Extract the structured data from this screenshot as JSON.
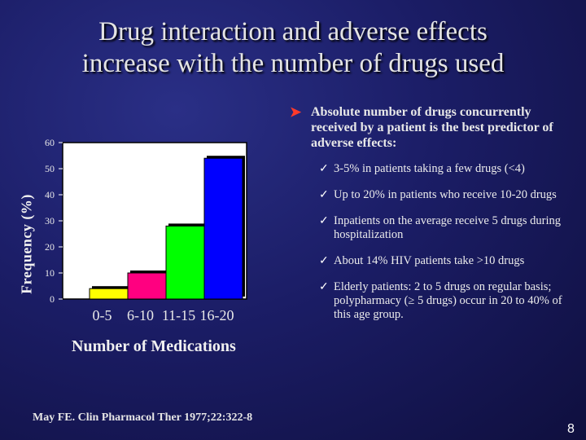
{
  "slide": {
    "title_line1": "Drug interaction and adverse effects",
    "title_line2": "increase with the number of drugs used",
    "main_bullet": "Absolute number of drugs concurrently received by a patient is the best predictor of adverse effects:",
    "sub_bullets": [
      "3-5% in patients taking a few drugs (<4)",
      "Up to 20% in patients who receive 10-20 drugs",
      "Inpatients on the average receive 5 drugs during hospitalization",
      "About 14% HIV patients take >10 drugs",
      "Elderly patients: 2 to 5 drugs on regular basis; polypharmacy (≥ 5 drugs) occur in 20 to 40% of this age group."
    ],
    "citation": "May FE.  Clin Pharmacol Ther 1977;22:322-8",
    "page_number": "8",
    "bullet_arrow_color": "#ff3a2a"
  },
  "chart_data": {
    "type": "bar",
    "categories": [
      "0-5",
      "6-10",
      "11-15",
      "16-20"
    ],
    "values": [
      4,
      10,
      28,
      54
    ],
    "colors": [
      "#ffff00",
      "#ff0080",
      "#00ff00",
      "#0000ff"
    ],
    "xlabel": "Number of Medications",
    "ylabel": "Frequency (%)",
    "ylim": [
      0,
      60
    ],
    "yticks": [
      0,
      10,
      20,
      30,
      40,
      50,
      60
    ],
    "plot_background": "#ffffff",
    "grid": false,
    "legend": "none"
  }
}
